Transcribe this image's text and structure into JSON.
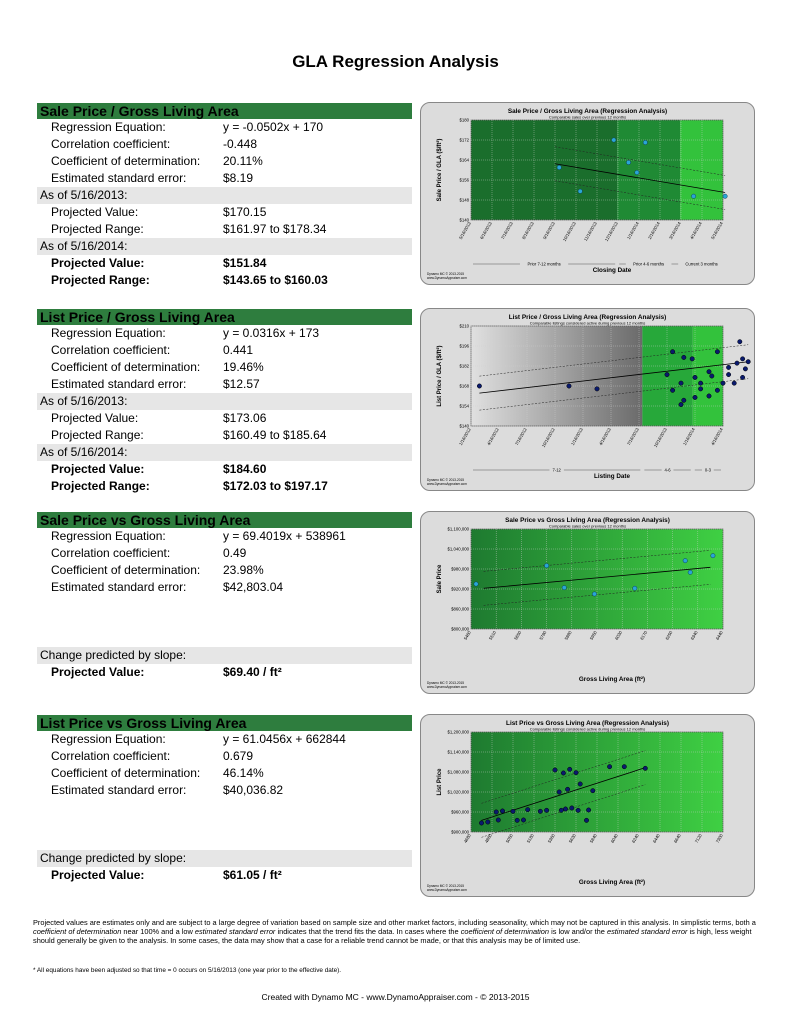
{
  "page_title": "GLA Regression Analysis",
  "sections": [
    {
      "header": "Sale Price / Gross Living Area",
      "rows": [
        {
          "type": "stat",
          "label": "Regression Equation:",
          "value": "y = -0.0502x + 170"
        },
        {
          "type": "stat",
          "label": "Correlation coefficient:",
          "value": "-0.448"
        },
        {
          "type": "stat",
          "label": "Coefficient of determination:",
          "value": "20.11%"
        },
        {
          "type": "stat",
          "label": "Estimated standard error:",
          "value": "$8.19"
        },
        {
          "type": "asof",
          "label": "As of 5/16/2013:",
          "value": ""
        },
        {
          "type": "stat",
          "label": "Projected Value:",
          "value": "$170.15"
        },
        {
          "type": "stat",
          "label": "Projected Range:",
          "value": "$161.97 to $178.34"
        },
        {
          "type": "asof",
          "label": "As of 5/16/2014:",
          "value": ""
        },
        {
          "type": "bold",
          "label": "Projected Value:",
          "value": "$151.84"
        },
        {
          "type": "bold",
          "label": "Projected Range:",
          "value": "$143.65 to $160.03"
        }
      ]
    },
    {
      "header": "List Price / Gross Living Area",
      "rows": [
        {
          "type": "stat",
          "label": "Regression Equation:",
          "value": "y = 0.0316x + 173"
        },
        {
          "type": "stat",
          "label": "Correlation coefficient:",
          "value": "0.441"
        },
        {
          "type": "stat",
          "label": "Coefficient of determination:",
          "value": "19.46%"
        },
        {
          "type": "stat",
          "label": "Estimated standard error:",
          "value": "$12.57"
        },
        {
          "type": "asof",
          "label": "As of 5/16/2013:",
          "value": ""
        },
        {
          "type": "stat",
          "label": "Projected Value:",
          "value": "$173.06"
        },
        {
          "type": "stat",
          "label": "Projected Range:",
          "value": "$160.49 to $185.64"
        },
        {
          "type": "asof",
          "label": "As of 5/16/2014:",
          "value": ""
        },
        {
          "type": "bold",
          "label": "Projected Value:",
          "value": "$184.60"
        },
        {
          "type": "bold",
          "label": "Projected Range:",
          "value": "$172.03 to $197.17"
        }
      ]
    },
    {
      "header": "Sale Price vs Gross Living Area",
      "rows": [
        {
          "type": "stat",
          "label": "Regression Equation:",
          "value": "y = 69.4019x + 538961"
        },
        {
          "type": "stat",
          "label": "Correlation coefficient:",
          "value": "0.49"
        },
        {
          "type": "stat",
          "label": "Coefficient of determination:",
          "value": "23.98%"
        },
        {
          "type": "stat",
          "label": "Estimated standard error:",
          "value": "$42,803.04"
        },
        {
          "type": "blank"
        },
        {
          "type": "blank"
        },
        {
          "type": "blank"
        },
        {
          "type": "chg",
          "label": "Change  predicted by slope:",
          "value": ""
        },
        {
          "type": "bold",
          "label": "Projected Value:",
          "value": "$69.40  / ft²"
        }
      ]
    },
    {
      "header": "List Price vs Gross Living Area",
      "rows": [
        {
          "type": "stat",
          "label": "Regression Equation:",
          "value": "y = 61.0456x + 662844"
        },
        {
          "type": "stat",
          "label": "Correlation coefficient:",
          "value": "0.679"
        },
        {
          "type": "stat",
          "label": "Coefficient of determination:",
          "value": "46.14%"
        },
        {
          "type": "stat",
          "label": "Estimated standard error:",
          "value": "$40,036.82"
        },
        {
          "type": "blank"
        },
        {
          "type": "blank"
        },
        {
          "type": "blank"
        },
        {
          "type": "chg",
          "label": "Change  predicted by slope:",
          "value": ""
        },
        {
          "type": "bold",
          "label": "Projected Value:",
          "value": "$61.05  / ft²"
        }
      ]
    }
  ],
  "chart_data": [
    {
      "type": "scatter",
      "title": "Sale Price / Gross Living Area (Regression Analysis)",
      "subtitle": "Comparable sales over previous 12 months",
      "xlabel": "Closing Date",
      "ylabel": "Sale Price / GLA ($/ft²)",
      "ylim": [
        140,
        180
      ],
      "yticks": [
        "$140",
        "$148",
        "$156",
        "$164",
        "$172",
        "$180"
      ],
      "xticks": [
        "5/16/2013",
        "6/16/2013",
        "7/16/2013",
        "8/16/2013",
        "9/16/2013",
        "10/16/2013",
        "11/16/2013",
        "12/16/2013",
        "1/16/2014",
        "2/16/2014",
        "3/16/2014",
        "4/16/2014",
        "5/16/2014"
      ],
      "x": [
        4.2,
        5.2,
        6.8,
        7.5,
        7.9,
        8.3,
        10.6,
        12.1
      ],
      "y": [
        161,
        151.5,
        172,
        163,
        159,
        171,
        149.5,
        149.5
      ],
      "fit": [
        [
          4,
          162.5
        ],
        [
          12.1,
          151
        ]
      ],
      "bands": [
        "Prior 7-12 months",
        "Prior 4-6 months",
        "Current 3 months"
      ],
      "band_colors": [
        "#1a6e2c",
        "#1f8a34",
        "#33c23c"
      ],
      "footer_lines": [
        "Dynamo MC  © 2013-2015",
        "www.DynamoAppraiser.com"
      ]
    },
    {
      "type": "scatter",
      "title": "List Price / Gross Living Area (Regression Analysis)",
      "subtitle": "Comparable listings considered active during previous 12 months",
      "xlabel": "Listing Date",
      "ylabel": "List Price / GLA ($/ft²)",
      "ylim": [
        140,
        210
      ],
      "yticks": [
        "$140",
        "$154",
        "$168",
        "$182",
        "$196",
        "$210"
      ],
      "xticks": [
        "1/16/2012",
        "4/16/2012",
        "7/16/2012",
        "10/16/2012",
        "1/16/2013",
        "4/16/2013",
        "7/16/2013",
        "10/16/2013",
        "1/16/2014",
        "4/16/2014"
      ],
      "x": [
        0.3,
        3.5,
        4.5,
        7.0,
        7.2,
        7.2,
        7.5,
        7.5,
        7.6,
        7.6,
        7.9,
        8.0,
        8.0,
        8.2,
        8.2,
        8.5,
        8.5,
        8.6,
        8.8,
        8.8,
        9.0,
        9.2,
        9.2,
        9.4,
        9.5,
        9.6,
        9.7,
        9.7,
        9.8,
        9.9
      ],
      "y": [
        168,
        168,
        166,
        176,
        192,
        165,
        155,
        170,
        188,
        158,
        187,
        174,
        160,
        166,
        170,
        178,
        161,
        175,
        165,
        192,
        170,
        181,
        176,
        170,
        184,
        199,
        187,
        174,
        180,
        185
      ],
      "fit": [
        [
          0.3,
          163
        ],
        [
          9.9,
          185
        ]
      ],
      "bands": [
        "7-12",
        "4-6",
        "0-3"
      ],
      "band_colors": [
        "#1a6e2c",
        "#27a83a",
        "#33c23c"
      ],
      "footer_lines": [
        "Dynamo MC  © 2013-2015",
        "www.DynamoAppraiser.com"
      ]
    },
    {
      "type": "scatter",
      "title": "Sale Price vs Gross Living Area (Regression Analysis)",
      "subtitle": "Comparable sales over previous 12 months",
      "xlabel": "Gross Living Area (ft²)",
      "ylabel": "Sale Price",
      "ylim": [
        800000,
        1100000
      ],
      "yticks": [
        "$800,000",
        "$860,000",
        "$920,000",
        "$980,000",
        "$1,040,000",
        "$1,100,000"
      ],
      "xticks": [
        "5460",
        "5510",
        "5650",
        "5780",
        "5880",
        "5950",
        "6030",
        "6170",
        "6250",
        "6340",
        "6440"
      ],
      "x": [
        0.2,
        3.0,
        3.7,
        4.9,
        6.5,
        8.5,
        8.7,
        9.6
      ],
      "y": [
        935000,
        990000,
        924000,
        905000,
        922000,
        1005000,
        970000,
        1020000
      ],
      "fit": [
        [
          0.5,
          922000
        ],
        [
          9.5,
          985000
        ]
      ],
      "footer_lines": [
        "Dynamo MC  © 2013-2015",
        "www.DynamoAppraiser.com"
      ]
    },
    {
      "type": "scatter",
      "title": "List Price vs Gross Living Area (Regression Analysis)",
      "subtitle": "Comparable listings considered active during previous 12 months",
      "xlabel": "Gross Living Area (ft²)",
      "ylabel": "List Price",
      "ylim": [
        900000,
        1200000
      ],
      "yticks": [
        "$900,000",
        "$960,000",
        "$1,020,000",
        "$1,080,000",
        "$1,140,000",
        "$1,200,000"
      ],
      "xticks": [
        "4680",
        "4860",
        "5050",
        "5180",
        "5360",
        "5630",
        "5840",
        "6040",
        "6240",
        "6440",
        "6640",
        "7120",
        "7300"
      ],
      "x": [
        0.5,
        0.8,
        1.2,
        1.3,
        1.5,
        2.0,
        2.2,
        2.5,
        2.7,
        3.3,
        3.6,
        4.0,
        4.2,
        4.3,
        4.4,
        4.5,
        4.6,
        4.7,
        4.8,
        5.0,
        5.1,
        5.2,
        5.5,
        5.6,
        5.8,
        6.6,
        7.3,
        8.3
      ],
      "y": [
        927000,
        930000,
        960000,
        936000,
        963000,
        962000,
        935000,
        936000,
        967000,
        962000,
        965000,
        1086000,
        1020000,
        965000,
        1077000,
        969000,
        1028000,
        1088000,
        972000,
        1078000,
        965000,
        1044000,
        935000,
        966000,
        1024000,
        1096000,
        1096000,
        1091000
      ],
      "fit": [
        [
          0.5,
          935000
        ],
        [
          8.3,
          1093000
        ]
      ],
      "footer_lines": [
        "Dynamo MC  © 2013-2015",
        "www.DynamoAppraiser.com"
      ]
    }
  ],
  "footnote_parts": [
    {
      "t": "Projected values are estimates only and are subject to a large degree of variation based on sample size and other market factors, including seasonality, which may not be captured in this analysis. In simplistic terms, both a ",
      "i": false
    },
    {
      "t": "coefficient of determination",
      "i": true
    },
    {
      "t": " near 100% and a low ",
      "i": false
    },
    {
      "t": "estimated standard error",
      "i": true
    },
    {
      "t": " indicates that the trend fits the data. In cases where the ",
      "i": false
    },
    {
      "t": "coefficient of determination",
      "i": true
    },
    {
      "t": " is low and/or the ",
      "i": false
    },
    {
      "t": "estimated standard error",
      "i": true
    },
    {
      "t": " is high, less weight should generally be given to the analysis. In some cases, the data may show that a case for a reliable trend cannot be made, or that this analysis may be of limited use.",
      "i": false
    }
  ],
  "footnote2": "* All equations have been adjusted so that time = 0 occurs on 5/16/2013  (one year prior to the effective date).",
  "credit": "Created with Dynamo MC - www.DynamoAppraiser.com - © 2013-2015"
}
